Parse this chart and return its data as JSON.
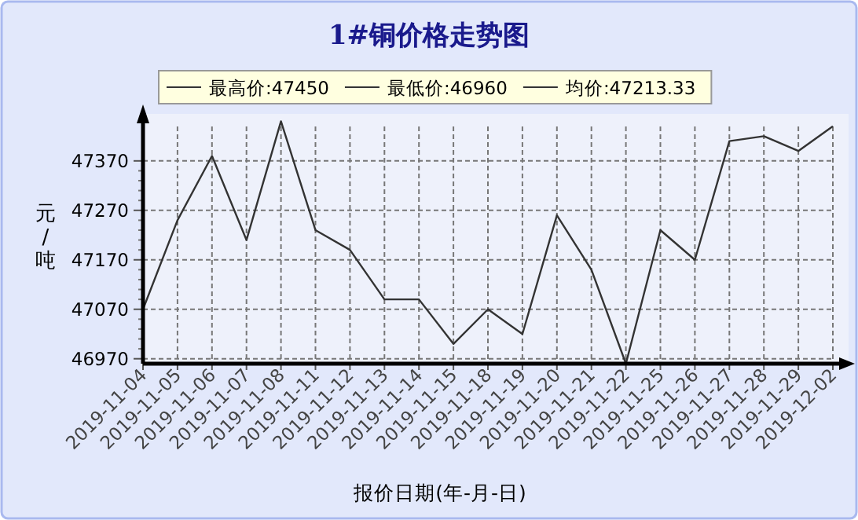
{
  "chart_data": {
    "type": "line",
    "title": "1#铜价格走势图",
    "xlabel": "报价日期(年-月-日)",
    "ylabel": "元/吨",
    "annotations": [
      "最高价:47450",
      "最低价:46960",
      "均价:47213.33"
    ],
    "categories": [
      "2019-11-04",
      "2019-11-05",
      "2019-11-06",
      "2019-11-07",
      "2019-11-08",
      "2019-11-11",
      "2019-11-12",
      "2019-11-13",
      "2019-11-14",
      "2019-11-15",
      "2019-11-18",
      "2019-11-19",
      "2019-11-20",
      "2019-11-21",
      "2019-11-22",
      "2019-11-25",
      "2019-11-26",
      "2019-11-27",
      "2019-11-28",
      "2019-11-29",
      "2019-12-02"
    ],
    "series": [
      {
        "color": "#333333",
        "values": [
          47070,
          47250,
          47380,
          47210,
          47450,
          47230,
          47190,
          47090,
          47090,
          47000,
          47070,
          47020,
          47260,
          47150,
          46960,
          47230,
          47170,
          47410,
          47420,
          47390,
          47440
        ]
      }
    ],
    "ylim": [
      46960,
      47465
    ],
    "yticks": [
      46970,
      47070,
      47170,
      47270,
      47370
    ],
    "grid": true,
    "marker": "none",
    "line_style": "solid"
  }
}
